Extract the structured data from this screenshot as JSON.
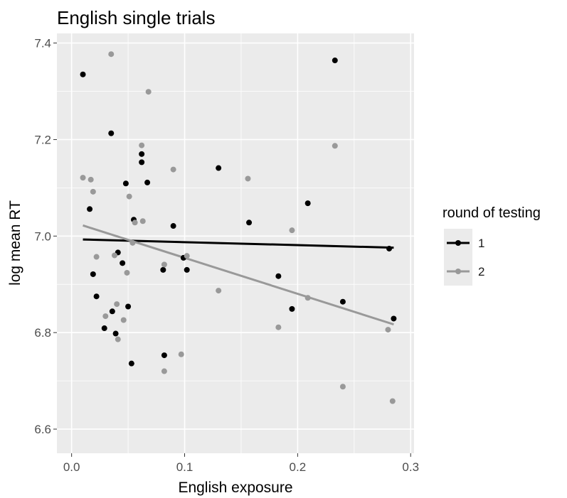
{
  "chart_data": {
    "type": "scatter",
    "title": "English single trials",
    "xlabel": "English exposure",
    "ylabel": "log mean RT",
    "xlim": [
      -0.013,
      0.303
    ],
    "ylim": [
      6.55,
      7.42
    ],
    "x_ticks": [
      0.0,
      0.1,
      0.2,
      0.3
    ],
    "x_tick_labels": [
      "0.0",
      "0.1",
      "0.2",
      "0.3"
    ],
    "y_ticks": [
      6.6,
      6.8,
      7.0,
      7.2,
      7.4
    ],
    "y_tick_labels": [
      "6.6",
      "6.8",
      "7.0",
      "7.2",
      "7.4"
    ],
    "grid": true,
    "background": "#ebebeb",
    "legend": {
      "title": "round of testing",
      "position": "right"
    },
    "series": [
      {
        "name": "1",
        "color": "#000000",
        "points": [
          {
            "x": 0.01,
            "y": 7.335
          },
          {
            "x": 0.016,
            "y": 7.056
          },
          {
            "x": 0.019,
            "y": 6.921
          },
          {
            "x": 0.022,
            "y": 6.875
          },
          {
            "x": 0.029,
            "y": 6.809
          },
          {
            "x": 0.035,
            "y": 7.213
          },
          {
            "x": 0.036,
            "y": 6.844
          },
          {
            "x": 0.039,
            "y": 6.798
          },
          {
            "x": 0.041,
            "y": 6.966
          },
          {
            "x": 0.045,
            "y": 6.944
          },
          {
            "x": 0.048,
            "y": 7.109
          },
          {
            "x": 0.05,
            "y": 6.854
          },
          {
            "x": 0.053,
            "y": 6.736
          },
          {
            "x": 0.055,
            "y": 7.034
          },
          {
            "x": 0.062,
            "y": 7.17
          },
          {
            "x": 0.062,
            "y": 7.153
          },
          {
            "x": 0.067,
            "y": 7.111
          },
          {
            "x": 0.081,
            "y": 6.93
          },
          {
            "x": 0.082,
            "y": 6.753
          },
          {
            "x": 0.09,
            "y": 7.021
          },
          {
            "x": 0.099,
            "y": 6.955
          },
          {
            "x": 0.102,
            "y": 6.93
          },
          {
            "x": 0.13,
            "y": 7.141
          },
          {
            "x": 0.157,
            "y": 7.028
          },
          {
            "x": 0.183,
            "y": 6.917
          },
          {
            "x": 0.195,
            "y": 6.849
          },
          {
            "x": 0.209,
            "y": 7.068
          },
          {
            "x": 0.233,
            "y": 7.364
          },
          {
            "x": 0.24,
            "y": 6.864
          },
          {
            "x": 0.281,
            "y": 6.974
          },
          {
            "x": 0.285,
            "y": 6.829
          }
        ],
        "trend": {
          "x": [
            0.01,
            0.285
          ],
          "y": [
            6.993,
            6.976
          ]
        }
      },
      {
        "name": "2",
        "color": "#999999",
        "points": [
          {
            "x": 0.01,
            "y": 7.121
          },
          {
            "x": 0.017,
            "y": 7.117
          },
          {
            "x": 0.019,
            "y": 7.092
          },
          {
            "x": 0.022,
            "y": 6.957
          },
          {
            "x": 0.03,
            "y": 6.834
          },
          {
            "x": 0.035,
            "y": 7.377
          },
          {
            "x": 0.038,
            "y": 6.96
          },
          {
            "x": 0.04,
            "y": 6.859
          },
          {
            "x": 0.041,
            "y": 6.786
          },
          {
            "x": 0.046,
            "y": 6.826
          },
          {
            "x": 0.049,
            "y": 6.924
          },
          {
            "x": 0.051,
            "y": 7.082
          },
          {
            "x": 0.054,
            "y": 6.986
          },
          {
            "x": 0.056,
            "y": 7.028
          },
          {
            "x": 0.062,
            "y": 7.188
          },
          {
            "x": 0.063,
            "y": 7.031
          },
          {
            "x": 0.068,
            "y": 7.299
          },
          {
            "x": 0.082,
            "y": 6.72
          },
          {
            "x": 0.082,
            "y": 6.941
          },
          {
            "x": 0.09,
            "y": 7.138
          },
          {
            "x": 0.097,
            "y": 6.755
          },
          {
            "x": 0.102,
            "y": 6.959
          },
          {
            "x": 0.13,
            "y": 6.887
          },
          {
            "x": 0.156,
            "y": 7.119
          },
          {
            "x": 0.183,
            "y": 6.811
          },
          {
            "x": 0.195,
            "y": 7.012
          },
          {
            "x": 0.209,
            "y": 6.872
          },
          {
            "x": 0.233,
            "y": 7.187
          },
          {
            "x": 0.24,
            "y": 6.688
          },
          {
            "x": 0.28,
            "y": 6.806
          },
          {
            "x": 0.284,
            "y": 6.658
          }
        ],
        "trend": {
          "x": [
            0.01,
            0.285
          ],
          "y": [
            7.022,
            6.817
          ]
        }
      }
    ]
  }
}
